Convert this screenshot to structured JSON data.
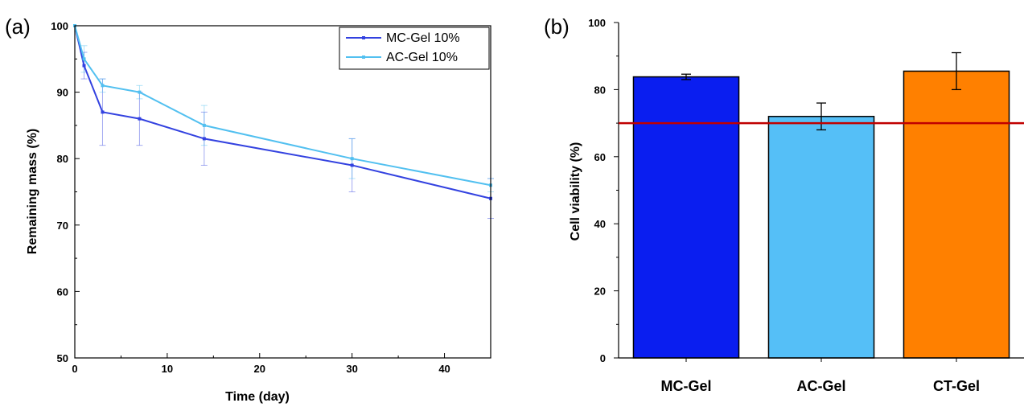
{
  "chart_data": [
    {
      "panel_label": "(a)",
      "type": "line",
      "xlabel": "Time (day)",
      "ylabel": "Remaining mass (%)",
      "xlim": [
        0,
        45
      ],
      "ylim": [
        50,
        100
      ],
      "xticks": [
        0,
        10,
        20,
        30,
        40
      ],
      "yticks": [
        50,
        60,
        70,
        80,
        90,
        100
      ],
      "legend_position": "top-right",
      "series": [
        {
          "name": "MC-Gel 10%",
          "color": "#3342e0",
          "x": [
            0,
            1,
            3,
            7,
            14,
            30,
            45
          ],
          "y": [
            100,
            94,
            87,
            86,
            83,
            79,
            74
          ],
          "error": [
            0,
            2,
            5,
            4,
            4,
            4,
            3
          ]
        },
        {
          "name": "AC-Gel 10%",
          "color": "#52c0f0",
          "x": [
            0,
            1,
            3,
            7,
            14,
            30,
            45
          ],
          "y": [
            100,
            95,
            91,
            90,
            85,
            80,
            76
          ],
          "error": [
            0,
            2,
            1,
            1,
            3,
            3,
            1
          ]
        }
      ]
    },
    {
      "panel_label": "(b)",
      "type": "bar",
      "ylabel": "Cell viability (%)",
      "ylim": [
        0,
        100
      ],
      "yticks": [
        0,
        20,
        40,
        60,
        80,
        100
      ],
      "categories": [
        "MC-Gel",
        "AC-Gel",
        "CT-Gel"
      ],
      "values": [
        83.8,
        72,
        85.5
      ],
      "errors": [
        0.8,
        4,
        5.5
      ],
      "colors": [
        "#0a1ef0",
        "#55bff7",
        "#ff8000"
      ],
      "reference_line": {
        "value": 70,
        "color": "#c00000"
      }
    }
  ]
}
